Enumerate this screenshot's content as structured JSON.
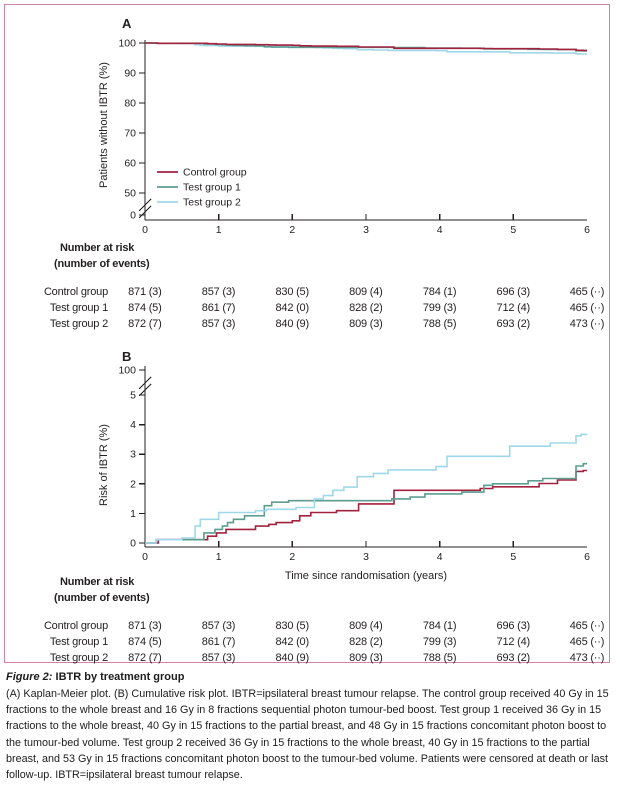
{
  "colors": {
    "border_pink": "#cf82a5",
    "axis": "#231f20",
    "text": "#231f20",
    "control": "#a2213f",
    "test1": "#5c9d90",
    "test2": "#9fd8e8"
  },
  "chart_data": [
    {
      "type": "line",
      "panel": "A",
      "subtype": "kaplan-meier-step",
      "ylabel": "Patients without IBTR (%)",
      "xlabel": "",
      "ylim": [
        50,
        100
      ],
      "axis_break": true,
      "ybreak_label": "0",
      "yticks": [
        "100",
        "90",
        "80",
        "70",
        "60",
        "50"
      ],
      "ytick_values": [
        100,
        90,
        80,
        70,
        60,
        50
      ],
      "xticks": [
        "0",
        "1",
        "2",
        "3",
        "4",
        "5",
        "6"
      ],
      "legend_position": "lower-left-inside",
      "series": [
        {
          "name": "Control group",
          "color": "#a2213f",
          "x": [
            0,
            0.18,
            0.85,
            0.97,
            1.1,
            1.5,
            1.68,
            1.78,
            2.0,
            2.1,
            2.25,
            2.6,
            2.9,
            3.38,
            4.55,
            4.72,
            5.35,
            5.6,
            5.85,
            5.95
          ],
          "y": [
            100,
            99.89,
            99.77,
            99.66,
            99.54,
            99.43,
            99.37,
            99.31,
            99.25,
            99.08,
            98.97,
            98.91,
            98.68,
            98.22,
            98.16,
            98.1,
            97.99,
            97.87,
            97.58,
            97.55
          ]
        },
        {
          "name": "Test group 1",
          "color": "#5c9d90",
          "x": [
            0,
            0.15,
            0.8,
            0.95,
            1.05,
            1.12,
            1.2,
            1.35,
            1.62,
            1.72,
            1.95,
            3.35,
            3.6,
            3.8,
            4.3,
            4.6,
            4.72,
            5.2,
            5.4,
            5.85,
            5.95
          ],
          "y": [
            100,
            99.89,
            99.66,
            99.54,
            99.43,
            99.31,
            99.2,
            99.08,
            98.74,
            98.62,
            98.57,
            98.51,
            98.45,
            98.34,
            98.28,
            98.05,
            98.0,
            97.9,
            97.82,
            97.4,
            97.32
          ]
        },
        {
          "name": "Test group 2",
          "color": "#9fd8e8",
          "x": [
            0,
            0.15,
            0.5,
            0.68,
            0.75,
            1.0,
            1.5,
            1.65,
            2.05,
            2.3,
            2.42,
            2.55,
            2.7,
            2.88,
            3.1,
            3.3,
            3.95,
            4.1,
            4.95,
            5.5,
            5.85,
            5.92
          ],
          "y": [
            100,
            99.89,
            99.83,
            99.43,
            99.2,
            98.97,
            98.91,
            98.86,
            98.8,
            98.51,
            98.4,
            98.22,
            98.11,
            97.76,
            97.65,
            97.53,
            97.42,
            97.07,
            96.73,
            96.62,
            96.38,
            96.33
          ]
        }
      ]
    },
    {
      "type": "line",
      "panel": "B",
      "subtype": "cumulative-risk-step",
      "ylabel": "Risk of IBTR (%)",
      "xlabel": "Time since randomisation (years)",
      "ylim": [
        0,
        5
      ],
      "axis_break": true,
      "ybreak_label": "100",
      "yticks": [
        "5",
        "4",
        "3",
        "2",
        "1",
        "0"
      ],
      "ytick_values": [
        5,
        4,
        3,
        2,
        1,
        0
      ],
      "xticks": [
        "0",
        "1",
        "2",
        "3",
        "4",
        "5",
        "6"
      ],
      "legend_position": "none",
      "series": [
        {
          "name": "Control group",
          "color": "#a2213f",
          "x": [
            0,
            0.18,
            0.85,
            0.97,
            1.1,
            1.5,
            1.68,
            1.78,
            2.0,
            2.1,
            2.25,
            2.6,
            2.9,
            3.38,
            4.55,
            4.72,
            5.35,
            5.6,
            5.85,
            5.95
          ],
          "y": [
            0,
            0.11,
            0.23,
            0.34,
            0.46,
            0.57,
            0.63,
            0.69,
            0.75,
            0.92,
            1.03,
            1.09,
            1.32,
            1.78,
            1.84,
            1.9,
            2.01,
            2.13,
            2.42,
            2.45
          ]
        },
        {
          "name": "Test group 1",
          "color": "#5c9d90",
          "x": [
            0,
            0.15,
            0.8,
            0.95,
            1.05,
            1.12,
            1.2,
            1.35,
            1.62,
            1.72,
            1.95,
            3.35,
            3.6,
            3.8,
            4.3,
            4.6,
            4.72,
            5.2,
            5.4,
            5.85,
            5.95
          ],
          "y": [
            0,
            0.11,
            0.34,
            0.46,
            0.57,
            0.69,
            0.8,
            0.92,
            1.26,
            1.38,
            1.43,
            1.49,
            1.55,
            1.66,
            1.72,
            1.95,
            2.0,
            2.1,
            2.18,
            2.6,
            2.68
          ]
        },
        {
          "name": "Test group 2",
          "color": "#9fd8e8",
          "x": [
            0,
            0.15,
            0.5,
            0.68,
            0.75,
            1.0,
            1.5,
            1.65,
            2.05,
            2.3,
            2.42,
            2.55,
            2.7,
            2.88,
            3.1,
            3.3,
            3.95,
            4.1,
            4.95,
            5.5,
            5.85,
            5.92
          ],
          "y": [
            0,
            0.11,
            0.17,
            0.57,
            0.8,
            1.03,
            1.09,
            1.14,
            1.2,
            1.49,
            1.6,
            1.78,
            1.89,
            2.24,
            2.35,
            2.47,
            2.58,
            2.93,
            3.27,
            3.38,
            3.62,
            3.67
          ]
        }
      ]
    }
  ],
  "number_at_risk": {
    "header_line1": "Number at risk",
    "header_line2": "(number of events)",
    "tables": {
      "a": {
        "rows": [
          {
            "label": "Control group",
            "values": [
              "871 (3)",
              "857 (3)",
              "830 (5)",
              "809 (4)",
              "784 (1)",
              "696 (3)",
              "465 (··)"
            ]
          },
          {
            "label": "Test group 1",
            "values": [
              "874 (5)",
              "861 (7)",
              "842 (0)",
              "828 (2)",
              "799 (3)",
              "712 (4)",
              "465 (··)"
            ]
          },
          {
            "label": "Test group 2",
            "values": [
              "872 (7)",
              "857 (3)",
              "840 (9)",
              "809 (3)",
              "788 (5)",
              "693 (2)",
              "473 (··)"
            ]
          }
        ]
      },
      "b": {
        "rows": [
          {
            "label": "Control group",
            "values": [
              "871 (3)",
              "857 (3)",
              "830 (5)",
              "809 (4)",
              "784 (1)",
              "696 (3)",
              "465 (··)"
            ]
          },
          {
            "label": "Test group 1",
            "values": [
              "874 (5)",
              "861 (7)",
              "842 (0)",
              "828 (2)",
              "799 (3)",
              "712 (4)",
              "465 (··)"
            ]
          },
          {
            "label": "Test group 2",
            "values": [
              "872 (7)",
              "857 (3)",
              "840 (9)",
              "809 (3)",
              "788 (5)",
              "693 (2)",
              "473 (··)"
            ]
          }
        ]
      }
    }
  },
  "caption": {
    "title_figure": "Figure 2:",
    "title_rest": " IBTR by treatment group",
    "body": "(A) Kaplan-Meier plot. (B) Cumulative risk plot. IBTR=ipsilateral breast tumour relapse. The control group received 40 Gy in 15 fractions to the whole breast and 16 Gy in 8 fractions sequential photon tumour-bed boost. Test group 1 received 36 Gy in 15 fractions to the whole breast, 40 Gy in 15 fractions to the partial breast, and 48 Gy in 15 fractions concomitant photon boost to the tumour-bed volume. Test group 2 received 36 Gy in 15 fractions to the whole breast, 40 Gy in 15 fractions to the partial breast, and 53 Gy in 15 fractions concomitant photon boost to the tumour-bed volume. Patients were censored at death or last follow-up. IBTR=ipsilateral breast tumour relapse."
  }
}
